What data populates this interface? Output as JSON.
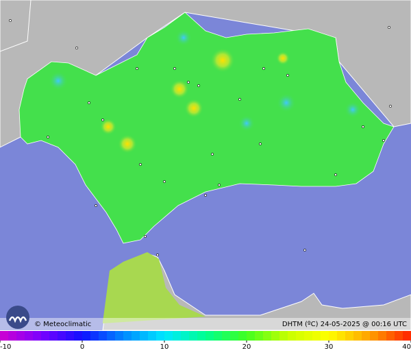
{
  "credit": "© Meteoclimatic",
  "caption": "DHTM (ºC)  24-05-2025 @ 00:16 UTC",
  "colorbar": {
    "min": -10,
    "max": 40,
    "ticks": [
      -10,
      0,
      10,
      20,
      30,
      40
    ],
    "colors": [
      "#d000d0",
      "#7a00ff",
      "#1010ff",
      "#0088ff",
      "#00e8ff",
      "#00ff90",
      "#40ff20",
      "#c8ff00",
      "#ffff00",
      "#ffa000",
      "#ff2000"
    ]
  }
}
